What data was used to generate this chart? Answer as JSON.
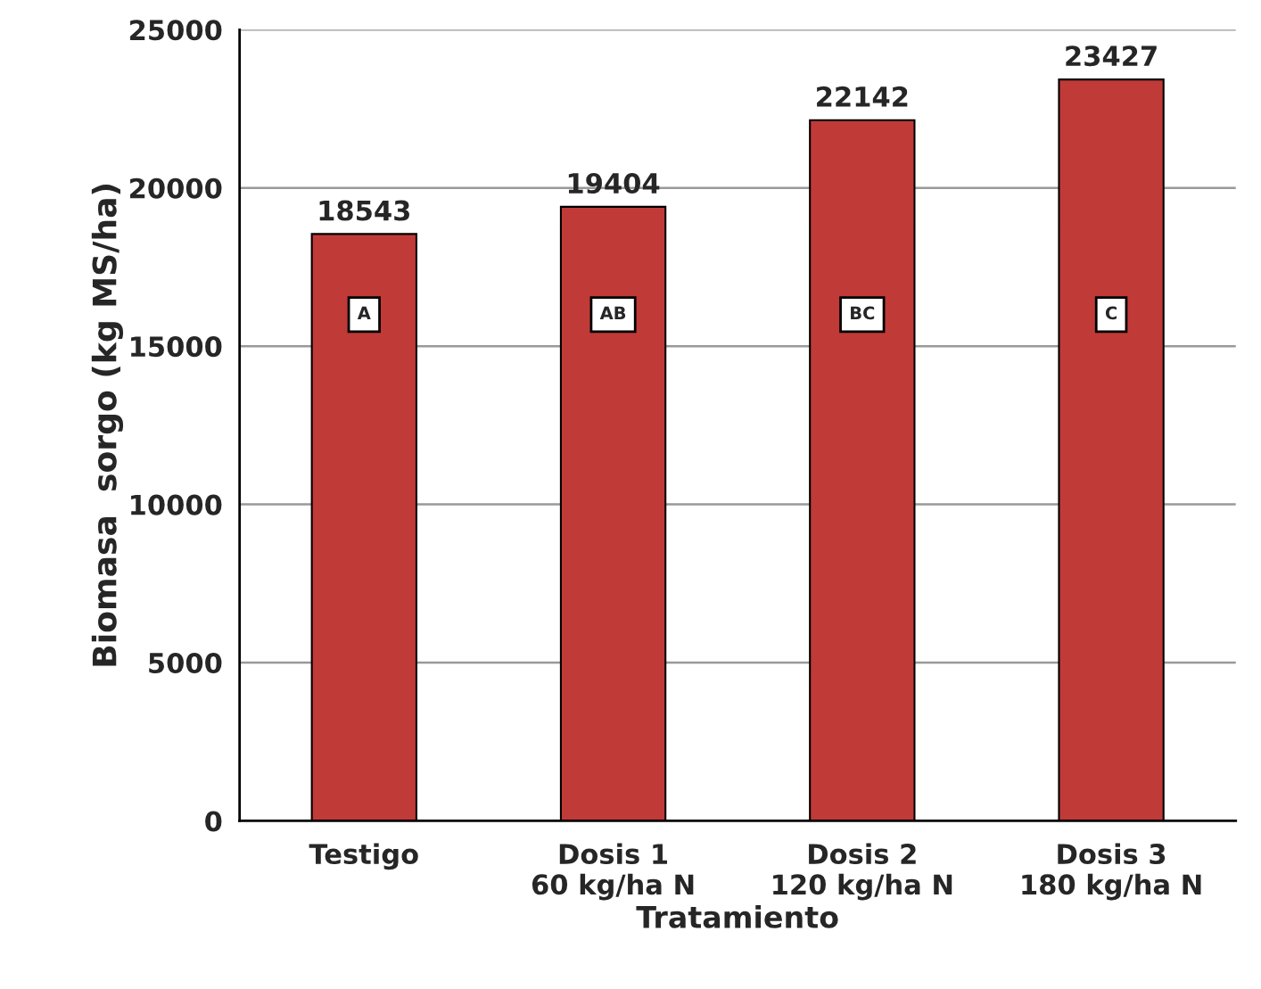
{
  "chart_data": {
    "type": "bar",
    "xlabel": "Tratamiento",
    "ylabel": "Biomasa  sorgo (kg MS/ha)",
    "categories": [
      "Testigo",
      "Dosis 1\n60 kg/ha N",
      "Dosis 2\n120 kg/ha N",
      "Dosis 3\n180 kg/ha N"
    ],
    "values": [
      18543,
      19404,
      22142,
      23427
    ],
    "color": "#c03a38",
    "data_labels": true,
    "ylim": [
      0,
      25000
    ],
    "yticks": [
      0,
      5000,
      10000,
      15000,
      20000,
      25000
    ],
    "grid": "y",
    "annotations": [
      "A",
      "AB",
      "BC",
      "C"
    ]
  }
}
